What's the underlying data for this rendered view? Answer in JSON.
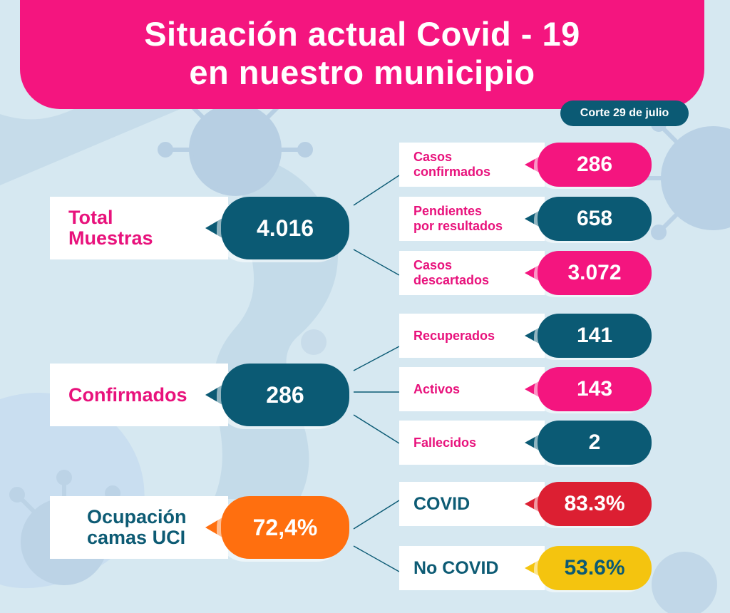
{
  "header": {
    "title_line1": "Situación actual Covid - 19",
    "title_line2": "en nuestro municipio",
    "date": "Corte 29 de julio"
  },
  "colors": {
    "pink": "#f4157f",
    "teal": "#0b5a74",
    "orange": "#ff6f0f",
    "red": "#dc1f32",
    "yellow": "#f4c40f",
    "background": "#d6e8f1"
  },
  "muestras": {
    "label_line1": "Total",
    "label_line2": "Muestras",
    "value": "4.016",
    "details": [
      {
        "label_line1": "Casos",
        "label_line2": "confirmados",
        "value": "286"
      },
      {
        "label_line1": "Pendientes",
        "label_line2": "por resultados",
        "value": "658"
      },
      {
        "label_line1": "Casos",
        "label_line2": "descartados",
        "value": "3.072"
      }
    ]
  },
  "confirmados": {
    "label": "Confirmados",
    "value": "286",
    "details": [
      {
        "label": "Recuperados",
        "value": "141"
      },
      {
        "label": "Activos",
        "value": "143"
      },
      {
        "label": "Fallecidos",
        "value": "2"
      }
    ]
  },
  "uci": {
    "label_line1": "Ocupación",
    "label_line2": "camas UCI",
    "value": "72,4%",
    "details": [
      {
        "label": "COVID",
        "value": "83.3%"
      },
      {
        "label": "No COVID",
        "value": "53.6%"
      }
    ]
  }
}
